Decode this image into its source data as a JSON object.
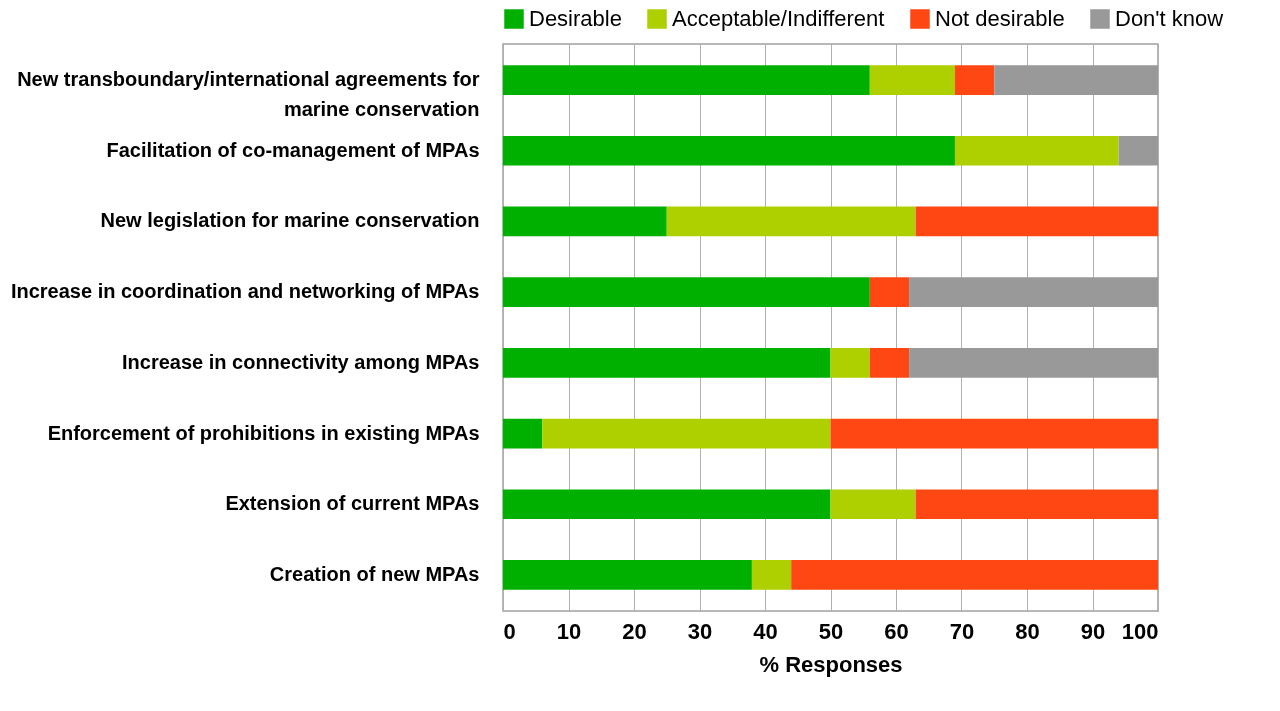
{
  "chart_data": {
    "type": "bar",
    "orientation": "horizontal",
    "stacked": true,
    "xlabel": "% Responses",
    "legend": "top",
    "grid": "x",
    "categories": [
      "New transboundary/international agreements for marine conservation",
      "Facilitation of co-management of MPAs",
      "New legislation for marine conservation",
      "Increase in coordination and networking of MPAs",
      "Increase in connectivity among MPAs",
      "Enforcement of prohibitions in existing MPAs",
      "Extension of current MPAs",
      "Creation of new MPAs"
    ],
    "series": [
      {
        "name": "Desirable",
        "color": "#00b000",
        "values": [
          56,
          69,
          25,
          56,
          50,
          6,
          50,
          38
        ]
      },
      {
        "name": "Acceptable/Indifferent",
        "color": "#aed000",
        "values": [
          13,
          25,
          38,
          0,
          6,
          44,
          13,
          6
        ]
      },
      {
        "name": "Not desirable",
        "color": "#ff4713",
        "values": [
          6,
          0,
          37,
          6,
          6,
          50,
          37,
          56
        ]
      },
      {
        "name": "Don't know",
        "color": "#999999",
        "values": [
          25,
          6,
          0,
          38,
          38,
          0,
          0,
          0
        ]
      }
    ],
    "xlim": [
      0,
      100
    ],
    "xticks": [
      0,
      10,
      20,
      30,
      40,
      50,
      60,
      70,
      80,
      90,
      100
    ]
  }
}
